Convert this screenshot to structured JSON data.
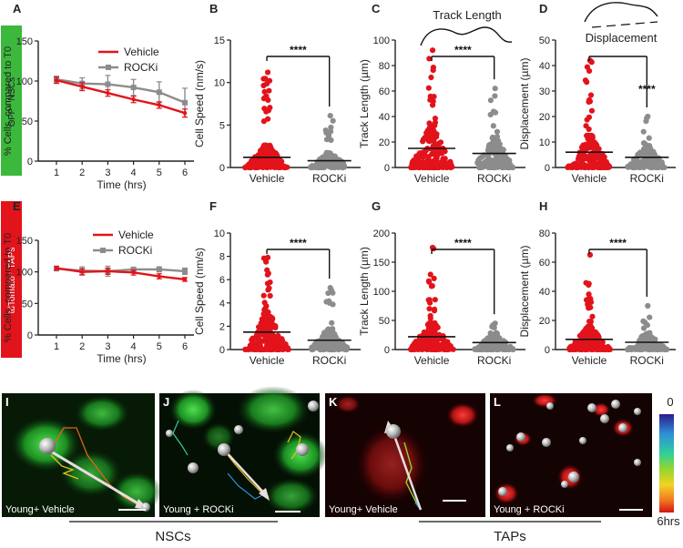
{
  "colors": {
    "vehicle": "#e2131b",
    "rocki": "#8c8c8c",
    "nsc_bar": "#3cb83c",
    "tap_bar": "#e2131b",
    "axis": "#222222"
  },
  "side_labels": {
    "nsc": "GFP⁺ NSCs",
    "tap": "tdTomato⁺ TAPs"
  },
  "group_labels": {
    "nsc": "NSCs",
    "tap": "TAPs"
  },
  "schematic_labels": {
    "track": "Track Length",
    "displacement": "Displacement"
  },
  "colorbar": {
    "top_label": "0",
    "bottom_label": "6hrs"
  },
  "micrographs": [
    {
      "letter": "I",
      "caption": "Young+ Vehicle"
    },
    {
      "letter": "J",
      "caption": "Young + ROCKi"
    },
    {
      "letter": "K",
      "caption": "Young+ Vehicle"
    },
    {
      "letter": "L",
      "caption": "Young + ROCKi"
    }
  ],
  "chart_data": [
    {
      "panel": "A",
      "type": "line",
      "xlabel": "Time (hrs)",
      "ylabel": "% Cells, compared to T0",
      "x": [
        1,
        2,
        3,
        4,
        5,
        6
      ],
      "ylim": [
        0,
        150
      ],
      "yticks": [
        0,
        50,
        100,
        150
      ],
      "series": [
        {
          "name": "Vehicle",
          "values": [
            101,
            93,
            85,
            77,
            70,
            60
          ],
          "errors": [
            4,
            5,
            4,
            4,
            4,
            5
          ]
        },
        {
          "name": "ROCKi",
          "values": [
            102,
            97,
            96,
            92,
            86,
            73
          ],
          "errors": [
            4,
            7,
            11,
            10,
            13,
            18
          ]
        }
      ]
    },
    {
      "panel": "B",
      "type": "scatter",
      "ylabel": "Cell Speed (nm/s)",
      "categories": [
        "Vehicle",
        "ROCKi"
      ],
      "ylim": [
        0,
        15
      ],
      "yticks": [
        0,
        5,
        10,
        15
      ],
      "means": [
        1.2,
        0.8
      ],
      "maxima": [
        11.2,
        6.1
      ],
      "significance": "****"
    },
    {
      "panel": "C",
      "type": "scatter",
      "ylabel": "Track Length (µm)",
      "categories": [
        "Vehicle",
        "ROCKi"
      ],
      "ylim": [
        0,
        100
      ],
      "yticks": [
        0,
        20,
        40,
        60,
        80,
        100
      ],
      "means": [
        15,
        11
      ],
      "maxima": [
        92,
        62
      ],
      "significance": "****"
    },
    {
      "panel": "D",
      "type": "scatter",
      "ylabel": "Displacement (µm)",
      "categories": [
        "Vehicle",
        "ROCKi"
      ],
      "ylim": [
        0,
        50
      ],
      "yticks": [
        0,
        10,
        20,
        30,
        40,
        50
      ],
      "means": [
        6,
        4
      ],
      "maxima": [
        42,
        20
      ],
      "significance": "****"
    },
    {
      "panel": "E",
      "type": "line",
      "xlabel": "Time (hrs)",
      "ylabel": "% Cells, compared to T0",
      "x": [
        1,
        2,
        3,
        4,
        5,
        6
      ],
      "ylim": [
        0,
        150
      ],
      "yticks": [
        0,
        50,
        100,
        150
      ],
      "series": [
        {
          "name": "Vehicle",
          "values": [
            106,
            100,
            101,
            99,
            93,
            88
          ],
          "errors": [
            3,
            5,
            5,
            4,
            4,
            3
          ]
        },
        {
          "name": "ROCKi",
          "values": [
            105,
            102,
            101,
            104,
            104,
            101
          ],
          "errors": [
            3,
            6,
            8,
            3,
            4,
            5
          ]
        }
      ]
    },
    {
      "panel": "F",
      "type": "scatter",
      "ylabel": "Cell Speed (nm/s)",
      "categories": [
        "Vehicle",
        "ROCKi"
      ],
      "ylim": [
        0,
        10
      ],
      "yticks": [
        0,
        2,
        4,
        6,
        8,
        10
      ],
      "means": [
        1.5,
        0.8
      ],
      "maxima": [
        7.9,
        5.3
      ],
      "significance": "****"
    },
    {
      "panel": "G",
      "type": "scatter",
      "ylabel": "Track Length (µm)",
      "categories": [
        "Vehicle",
        "ROCKi"
      ],
      "ylim": [
        0,
        200
      ],
      "yticks": [
        0,
        50,
        100,
        150,
        200
      ],
      "means": [
        22,
        12
      ],
      "maxima": [
        175,
        45
      ],
      "significance": "****"
    },
    {
      "panel": "H",
      "type": "scatter",
      "ylabel": "Displacement (µm)",
      "categories": [
        "Vehicle",
        "ROCKi"
      ],
      "ylim": [
        0,
        80
      ],
      "yticks": [
        0,
        20,
        40,
        60,
        80
      ],
      "means": [
        7,
        5
      ],
      "maxima": [
        65,
        30
      ],
      "significance": "****"
    }
  ]
}
